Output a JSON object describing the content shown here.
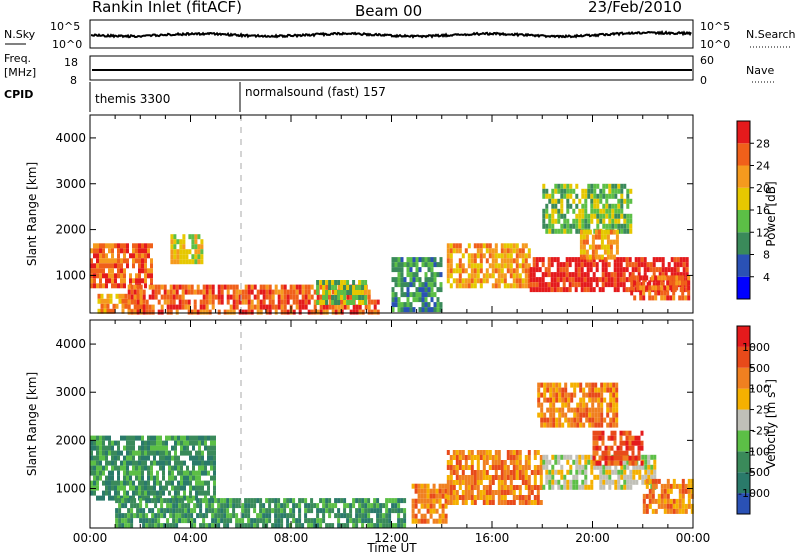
{
  "header": {
    "station": "Rankin Inlet (fitACF)",
    "beam": "Beam 00",
    "date": "23/Feb/2010"
  },
  "strips": {
    "nsky_label": "N.Sky",
    "nsky_ticks": [
      "10^5",
      "10^0"
    ],
    "nsearch_label": "N.Search",
    "nsearch_ticks": [
      "10^5",
      "10^0"
    ],
    "freq_label_1": "Freq.",
    "freq_label_2": "[MHz]",
    "freq_ticks": [
      "18",
      "8"
    ],
    "nave_label": "Nave",
    "nave_ticks": [
      "60",
      "0"
    ],
    "cpid_label": "CPID",
    "cpid_entries": [
      {
        "label": "themis 3300",
        "start_hour": 0
      },
      {
        "label": "normalsound (fast) 157",
        "start_hour": 6
      }
    ]
  },
  "chart_data": [
    {
      "type": "heatmap",
      "panel": "power",
      "ylabel": "Slant Range [km]",
      "xlabel": "Time UT",
      "xlim_hours": [
        0,
        24
      ],
      "ylim_km": [
        180,
        4500
      ],
      "y_ticks": [
        "4000",
        "3000",
        "2000",
        "1000"
      ],
      "x_ticks": [
        "00:00",
        "04:00",
        "08:00",
        "12:00",
        "16:00",
        "20:00",
        "00:00"
      ],
      "colorbar": {
        "label": "Power [dB]",
        "ticks": [
          "28",
          "24",
          "20",
          "16",
          "12",
          "8",
          "4"
        ],
        "colors": [
          "#0000ff",
          "#2a51b5",
          "#3a8a5a",
          "#5cbf46",
          "#e6c800",
          "#f59a1e",
          "#f0601a",
          "#e41a1c"
        ]
      },
      "regions": [
        {
          "t0": 0.0,
          "t1": 2.4,
          "r0": 800,
          "r1": 1700,
          "level": 6
        },
        {
          "t0": 0.3,
          "t1": 2.2,
          "r0": 200,
          "r1": 600,
          "level": 5
        },
        {
          "t0": 3.2,
          "t1": 4.5,
          "r0": 1300,
          "r1": 1900,
          "level": 4
        },
        {
          "t0": 1.5,
          "t1": 11.5,
          "r0": 200,
          "r1": 800,
          "level": 6
        },
        {
          "t0": 9.0,
          "t1": 11.0,
          "r0": 400,
          "r1": 900,
          "level": 3
        },
        {
          "t0": 12.0,
          "t1": 14.0,
          "r0": 300,
          "r1": 1400,
          "level": 2
        },
        {
          "t0": 14.2,
          "t1": 17.5,
          "r0": 800,
          "r1": 1700,
          "level": 5
        },
        {
          "t0": 17.5,
          "t1": 23.8,
          "r0": 700,
          "r1": 1400,
          "level": 7
        },
        {
          "t0": 18.0,
          "t1": 21.5,
          "r0": 2000,
          "r1": 3000,
          "level": 3
        },
        {
          "t0": 19.5,
          "t1": 21.0,
          "r0": 1400,
          "r1": 2000,
          "level": 5
        },
        {
          "t0": 21.5,
          "t1": 23.8,
          "r0": 500,
          "r1": 1000,
          "level": 6
        }
      ]
    },
    {
      "type": "heatmap",
      "panel": "velocity",
      "ylabel": "Slant Range [km]",
      "xlabel": "Time UT",
      "xlim_hours": [
        0,
        24
      ],
      "ylim_km": [
        180,
        4500
      ],
      "y_ticks": [
        "4000",
        "3000",
        "2000",
        "1000"
      ],
      "x_ticks": [
        "00:00",
        "04:00",
        "08:00",
        "12:00",
        "16:00",
        "20:00",
        "00:00"
      ],
      "colorbar": {
        "label": "Velocity [m s^-1]",
        "ticks": [
          "1000",
          "500",
          "100",
          "25",
          "-25",
          "-100",
          "-500",
          "-1000"
        ],
        "colors": [
          "#2a51b5",
          "#2a7a6a",
          "#3a8a5a",
          "#5cbf46",
          "#c0c0b8",
          "#f5b000",
          "#f08020",
          "#e84a1a",
          "#e41a1c"
        ]
      },
      "regions": [
        {
          "t0": 0.0,
          "t1": 5.0,
          "r0": 800,
          "r1": 2100,
          "level": 2
        },
        {
          "t0": 1.0,
          "t1": 12.5,
          "r0": 200,
          "r1": 800,
          "level": 2
        },
        {
          "t0": 12.8,
          "t1": 14.2,
          "r0": 300,
          "r1": 1100,
          "level": 6
        },
        {
          "t0": 14.2,
          "t1": 18.0,
          "r0": 700,
          "r1": 1800,
          "level": 6
        },
        {
          "t0": 18.0,
          "t1": 22.5,
          "r0": 1000,
          "r1": 1700,
          "level": 4
        },
        {
          "t0": 17.8,
          "t1": 21.0,
          "r0": 2300,
          "r1": 3200,
          "level": 6
        },
        {
          "t0": 20.0,
          "t1": 22.0,
          "r0": 1500,
          "r1": 2200,
          "level": 7
        },
        {
          "t0": 22.0,
          "t1": 24.0,
          "r0": 500,
          "r1": 1200,
          "level": 6
        }
      ]
    }
  ]
}
